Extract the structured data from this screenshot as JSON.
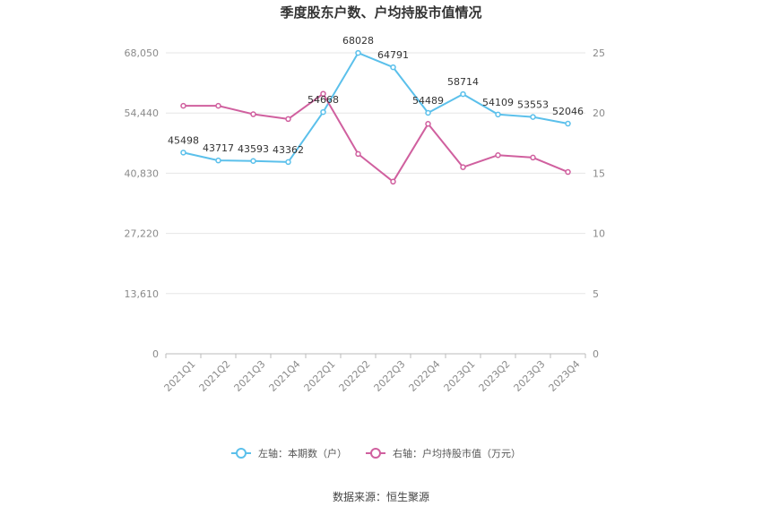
{
  "chart_data": {
    "type": "line",
    "title": "季度股东户数、户均持股市值情况",
    "categories": [
      "2021Q1",
      "2021Q2",
      "2021Q3",
      "2021Q4",
      "2022Q1",
      "2022Q2",
      "2022Q3",
      "2022Q4",
      "2023Q1",
      "2023Q2",
      "2023Q3",
      "2023Q4"
    ],
    "left_axis": {
      "ticks": [
        "0",
        "13,610",
        "27,220",
        "40,830",
        "54,440",
        "68,050"
      ],
      "min": 0,
      "max": 68050
    },
    "right_axis": {
      "ticks": [
        "0",
        "5",
        "10",
        "15",
        "20",
        "25"
      ],
      "min": 0,
      "max": 25
    },
    "series": [
      {
        "name": "左轴：本期数（户）",
        "axis": "left",
        "color": "#5bc0eb",
        "values": [
          45498,
          43717,
          43593,
          43362,
          54668,
          68028,
          64791,
          54489,
          58714,
          54109,
          53553,
          52046
        ],
        "labels": [
          "45498",
          "43717",
          "43593",
          "43362",
          "54668",
          "68028",
          "64791",
          "54489",
          "58714",
          "54109",
          "53553",
          "52046"
        ]
      },
      {
        "name": "右轴：户均持股市值（万元）",
        "axis": "right",
        "color": "#d0609f",
        "values": [
          20.6,
          20.6,
          19.9,
          19.5,
          21.6,
          16.6,
          14.3,
          19.1,
          15.5,
          16.5,
          16.3,
          15.1
        ]
      }
    ],
    "grid": true,
    "legend_position": "bottom"
  },
  "footer": {
    "source": "数据来源：恒生聚源"
  }
}
